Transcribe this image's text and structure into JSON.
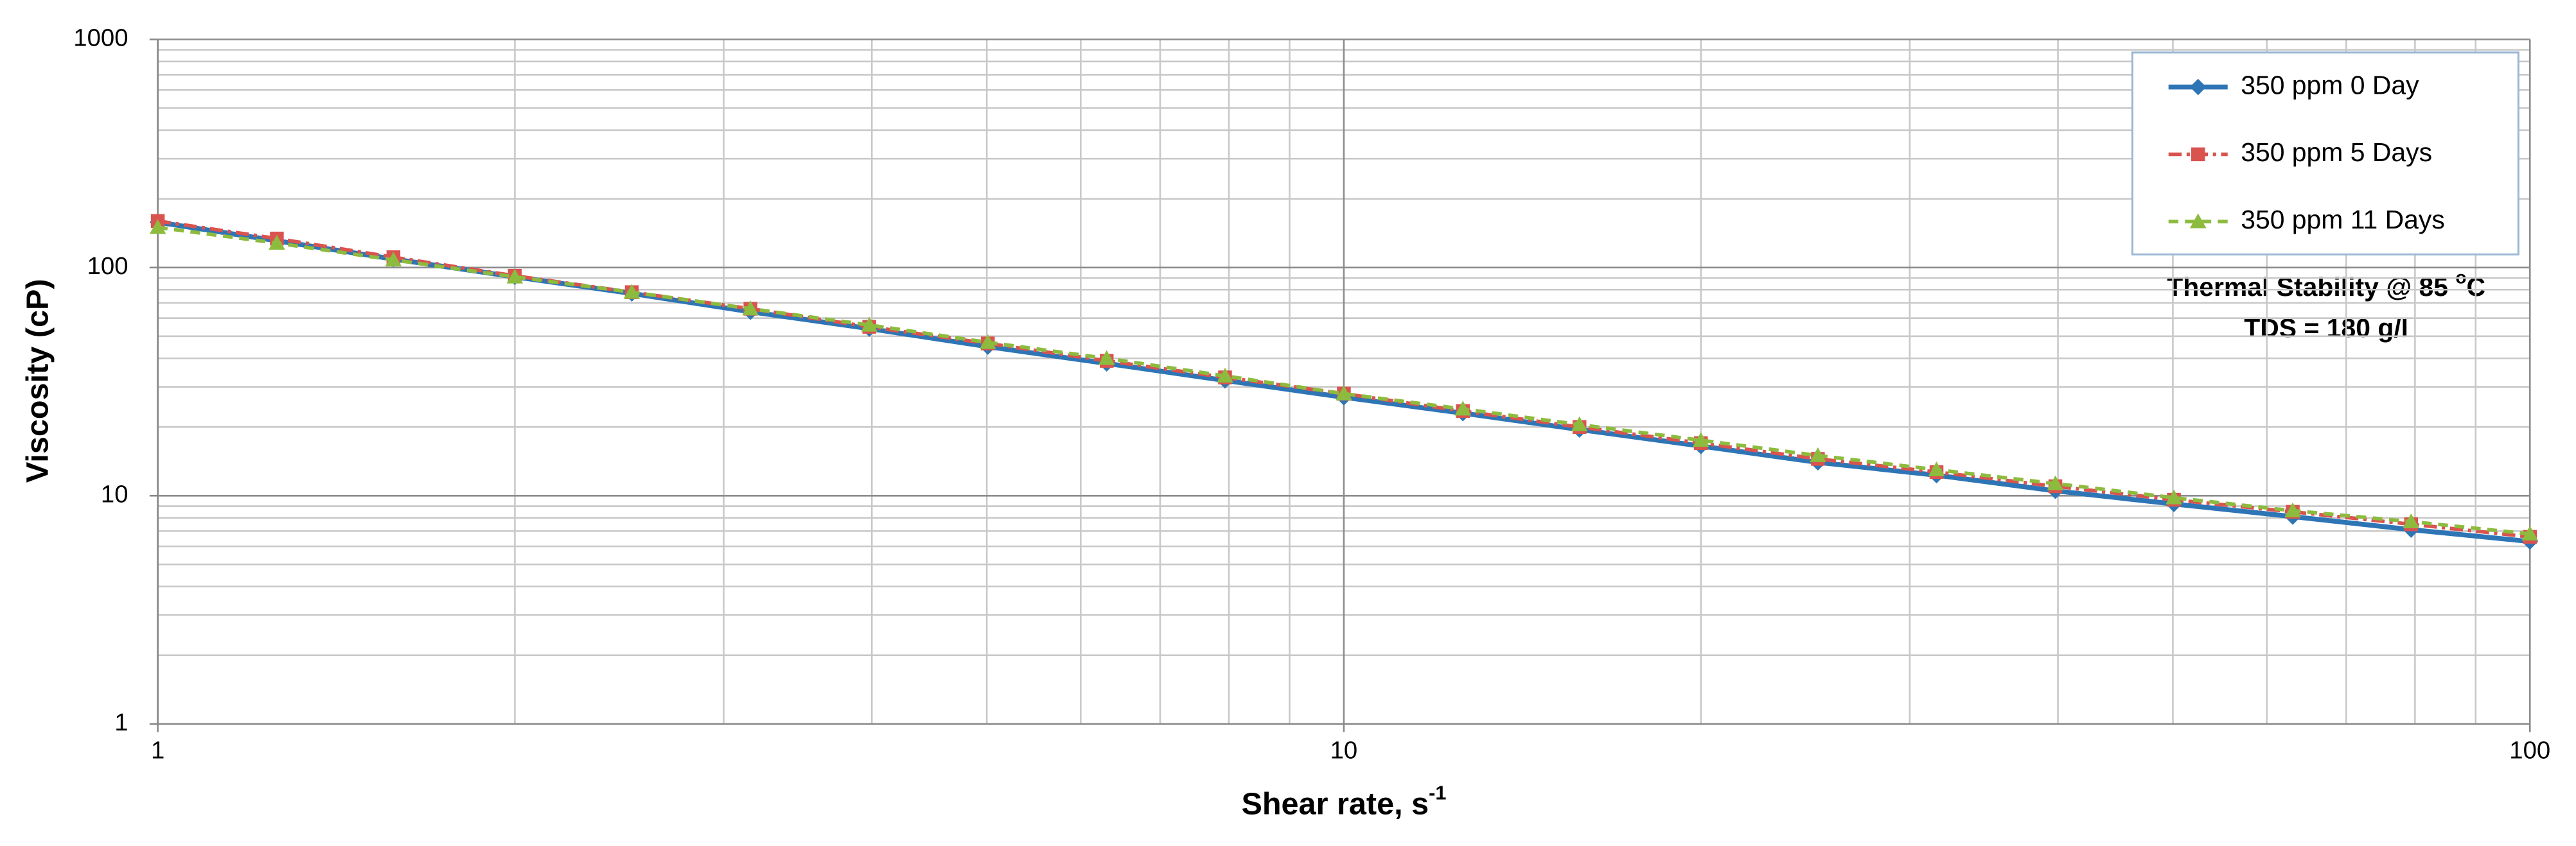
{
  "chart_data": {
    "type": "line",
    "x_label": "Shear rate, s",
    "x_label_sup": "-1",
    "y_label": "Viscosity (cP)",
    "annotation": {
      "line1": "Thermal Stability @ 85 ",
      "line1_sup": "o",
      "line1_end": "C",
      "line2": "TDS = 180 g/l"
    },
    "x": [
      1,
      1.26,
      1.58,
      2,
      2.51,
      3.16,
      3.98,
      5.01,
      6.31,
      7.94,
      10,
      12.6,
      15.8,
      20,
      25.1,
      31.6,
      39.8,
      50.1,
      63.1,
      79.4,
      100
    ],
    "series": [
      {
        "name": "350 ppm 0 Day",
        "color": "#2e75b6",
        "marker": "diamond",
        "dash": "solid",
        "values": [
          158,
          131,
          109,
          91,
          77,
          64,
          54,
          45,
          38,
          32,
          27,
          23,
          19.5,
          16.5,
          14,
          12.3,
          10.5,
          9.2,
          8.1,
          7.1,
          6.3
        ]
      },
      {
        "name": "350 ppm 5 Days",
        "color": "#d9534f",
        "marker": "square",
        "dash": "dashdot",
        "values": [
          160,
          134,
          111,
          92,
          78,
          66,
          55,
          46.5,
          39,
          33,
          28,
          23.5,
          20,
          17,
          14.5,
          12.7,
          11,
          9.6,
          8.5,
          7.5,
          6.6
        ]
      },
      {
        "name": "350 ppm 11 Days",
        "color": "#8dbb3e",
        "marker": "triangle",
        "dash": "dashed",
        "values": [
          150,
          128,
          108,
          91,
          78,
          66,
          56,
          47,
          40,
          33.5,
          28,
          24,
          20.5,
          17.5,
          15,
          13,
          11.3,
          9.8,
          8.6,
          7.7,
          6.8
        ]
      }
    ],
    "xlim": [
      1,
      100
    ],
    "xticks": [
      1,
      10,
      100
    ],
    "ylim": [
      1,
      1000
    ],
    "yticks": [
      1,
      10,
      100,
      1000
    ],
    "xscale": "log",
    "yscale": "log",
    "grid": true,
    "minor_grid": true,
    "legend": "top-right"
  }
}
